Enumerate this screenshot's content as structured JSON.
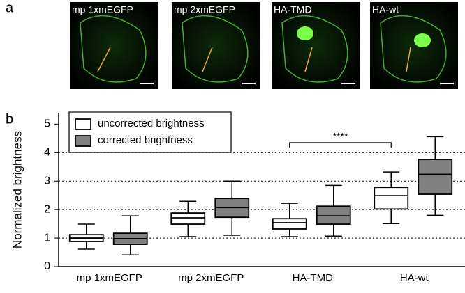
{
  "panel_labels": [
    "a",
    "b"
  ],
  "images": [
    {
      "label": "mp 1xmEGFP"
    },
    {
      "label": "mp 2xmEGFP"
    },
    {
      "label": "HA-TMD"
    },
    {
      "label": "HA-wt"
    }
  ],
  "chart_data": {
    "type": "box",
    "y_label": "Normalized brightness",
    "categories": [
      "mp 1xmEGFP",
      "mp 2xmEGFP",
      "HA-TMD",
      "HA-wt"
    ],
    "series": [
      {
        "name": "uncorrected brightness",
        "color": "#ffffff",
        "min": [
          0.61,
          1.05,
          1.05,
          1.51
        ],
        "q1": [
          0.88,
          1.49,
          1.32,
          2.02
        ],
        "median": [
          1.0,
          1.71,
          1.54,
          2.49
        ],
        "q3": [
          1.12,
          1.88,
          1.68,
          2.78
        ],
        "max": [
          1.49,
          2.29,
          2.22,
          3.32
        ]
      },
      {
        "name": "corrected brightness",
        "color": "#808080",
        "min": [
          0.41,
          1.1,
          1.07,
          1.8
        ],
        "q1": [
          0.78,
          1.73,
          1.49,
          2.54
        ],
        "median": [
          0.98,
          2.07,
          1.78,
          3.24
        ],
        "q3": [
          1.17,
          2.39,
          2.12,
          3.76
        ],
        "max": [
          1.78,
          3.0,
          2.85,
          4.56
        ]
      }
    ],
    "ylim": [
      0,
      5.4
    ],
    "yticks": [
      0,
      1,
      2,
      3,
      4,
      5
    ],
    "grid": true,
    "annotation": "****"
  }
}
